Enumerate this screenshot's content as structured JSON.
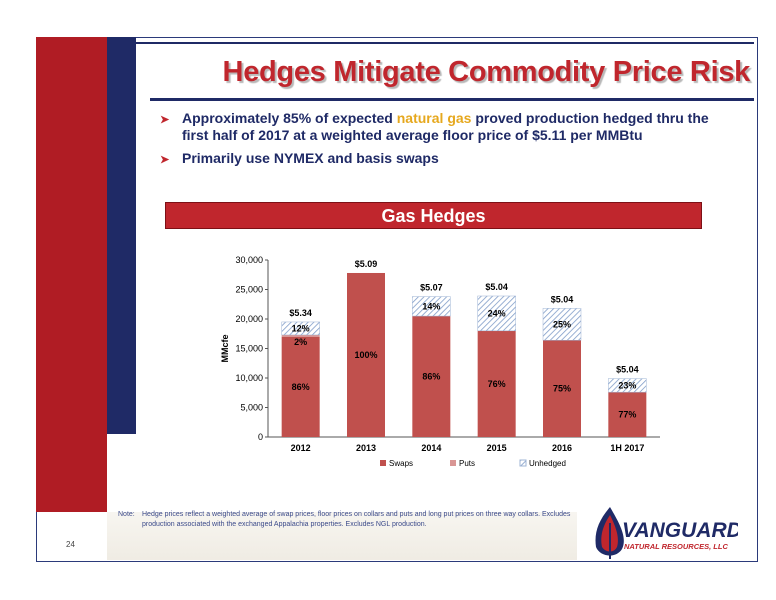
{
  "title": "Hedges Mitigate Commodity Price Risk",
  "bullets": [
    {
      "pre": "Approximately 85% of expected ",
      "highlight": "natural gas",
      "post": " proved production hedged thru the first half of 2017 at a weighted average floor price of $5.11 per MMBtu"
    },
    {
      "text": "Primarily use NYMEX and basis swaps"
    }
  ],
  "chart_banner": "Gas Hedges",
  "chart_data": {
    "type": "bar",
    "stacked": true,
    "categories": [
      "2012",
      "2013",
      "2014",
      "2015",
      "2016",
      "1H 2017"
    ],
    "ylabel": "MMcfe",
    "ylim": [
      0,
      30000
    ],
    "yticks": [
      "0",
      "5,000",
      "10,000",
      "15,000",
      "20,000",
      "25,000",
      "30,000"
    ],
    "ytick_values": [
      0,
      5000,
      10000,
      15000,
      20000,
      25000,
      30000
    ],
    "series": [
      {
        "name": "Swaps",
        "values": [
          17000,
          27800,
          20500,
          18000,
          16400,
          7600
        ],
        "labels": [
          "86%",
          "100%",
          "86%",
          "76%",
          "75%",
          "77%"
        ],
        "color": "#c0504d"
      },
      {
        "name": "Puts",
        "values": [
          300,
          0,
          0,
          0,
          0,
          0
        ],
        "labels": [
          "2%",
          "",
          "",
          "",
          "",
          ""
        ],
        "color": "#d99694"
      },
      {
        "name": "Unhedged",
        "values": [
          2200,
          0,
          3300,
          5900,
          5400,
          2300
        ],
        "labels": [
          "12%",
          "",
          "14%",
          "24%",
          "25%",
          "23%"
        ],
        "color": "#a5b8d6"
      }
    ],
    "price_labels": [
      "$5.34",
      "$5.09",
      "$5.07",
      "$5.04",
      "$5.04",
      "$5.04"
    ],
    "legend": "bottom"
  },
  "note_label": "Note:",
  "note_text": "Hedge prices reflect a weighted  average of swap prices, floor prices on collars and puts and long put prices on three way collars. Excludes production associated with the exchanged Appalachia properties. Excludes NGL production.",
  "page_number": "24",
  "logo": {
    "name": "VANGUARD",
    "sub": "NATURAL RESOURCES, LLC"
  },
  "colors": {
    "brand_red": "#c0262d",
    "navy": "#1f2a66",
    "highlight": "#e6a81e"
  }
}
